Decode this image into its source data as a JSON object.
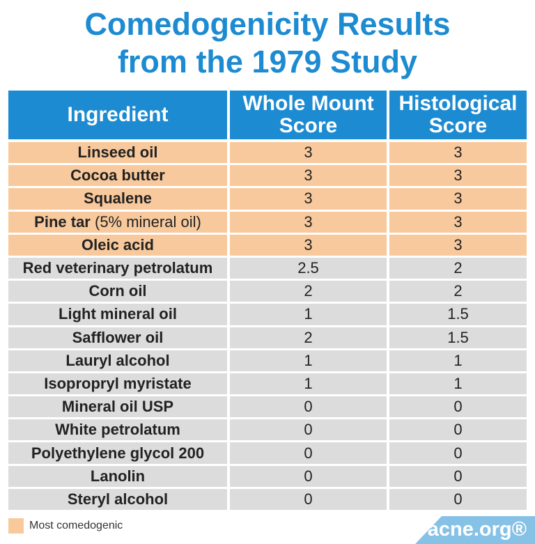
{
  "title_line1": "Comedogenicity Results",
  "title_line2": "from the 1979 Study",
  "chart_data": {
    "type": "table",
    "columns": [
      "Ingredient",
      "Whole Mount Score",
      "Histological Score"
    ],
    "rows": [
      {
        "ingredient": "Linseed oil",
        "note": "",
        "whole_mount": "3",
        "histological": "3",
        "most_comedogenic": true
      },
      {
        "ingredient": "Cocoa butter",
        "note": "",
        "whole_mount": "3",
        "histological": "3",
        "most_comedogenic": true
      },
      {
        "ingredient": "Squalene",
        "note": "",
        "whole_mount": "3",
        "histological": "3",
        "most_comedogenic": true
      },
      {
        "ingredient": "Pine tar",
        "note": " (5% mineral oil)",
        "whole_mount": "3",
        "histological": "3",
        "most_comedogenic": true
      },
      {
        "ingredient": "Oleic acid",
        "note": "",
        "whole_mount": "3",
        "histological": "3",
        "most_comedogenic": true
      },
      {
        "ingredient": "Red veterinary petrolatum",
        "note": "",
        "whole_mount": "2.5",
        "histological": "2",
        "most_comedogenic": false
      },
      {
        "ingredient": "Corn oil",
        "note": "",
        "whole_mount": "2",
        "histological": "2",
        "most_comedogenic": false
      },
      {
        "ingredient": "Light mineral oil",
        "note": "",
        "whole_mount": "1",
        "histological": "1.5",
        "most_comedogenic": false
      },
      {
        "ingredient": "Safflower oil",
        "note": "",
        "whole_mount": "2",
        "histological": "1.5",
        "most_comedogenic": false
      },
      {
        "ingredient": "Lauryl alcohol",
        "note": "",
        "whole_mount": "1",
        "histological": "1",
        "most_comedogenic": false
      },
      {
        "ingredient": "Isopropryl myristate",
        "note": "",
        "whole_mount": "1",
        "histological": "1",
        "most_comedogenic": false
      },
      {
        "ingredient": "Mineral oil USP",
        "note": "",
        "whole_mount": "0",
        "histological": "0",
        "most_comedogenic": false
      },
      {
        "ingredient": "White petrolatum",
        "note": "",
        "whole_mount": "0",
        "histological": "0",
        "most_comedogenic": false
      },
      {
        "ingredient": "Polyethylene glycol 200",
        "note": "",
        "whole_mount": "0",
        "histological": "0",
        "most_comedogenic": false
      },
      {
        "ingredient": "Lanolin",
        "note": "",
        "whole_mount": "0",
        "histological": "0",
        "most_comedogenic": false
      },
      {
        "ingredient": "Steryl alcohol",
        "note": "",
        "whole_mount": "0",
        "histological": "0",
        "most_comedogenic": false
      }
    ]
  },
  "legend": {
    "label": "Most comedogenic",
    "color": "#f8c99c"
  },
  "colors": {
    "header": "#1d8bd1",
    "row_default": "#dcdcdc",
    "highlight": "#f8c99c",
    "logo_bg": "#86c1e6"
  },
  "logo": {
    "text": "acne.org®"
  }
}
